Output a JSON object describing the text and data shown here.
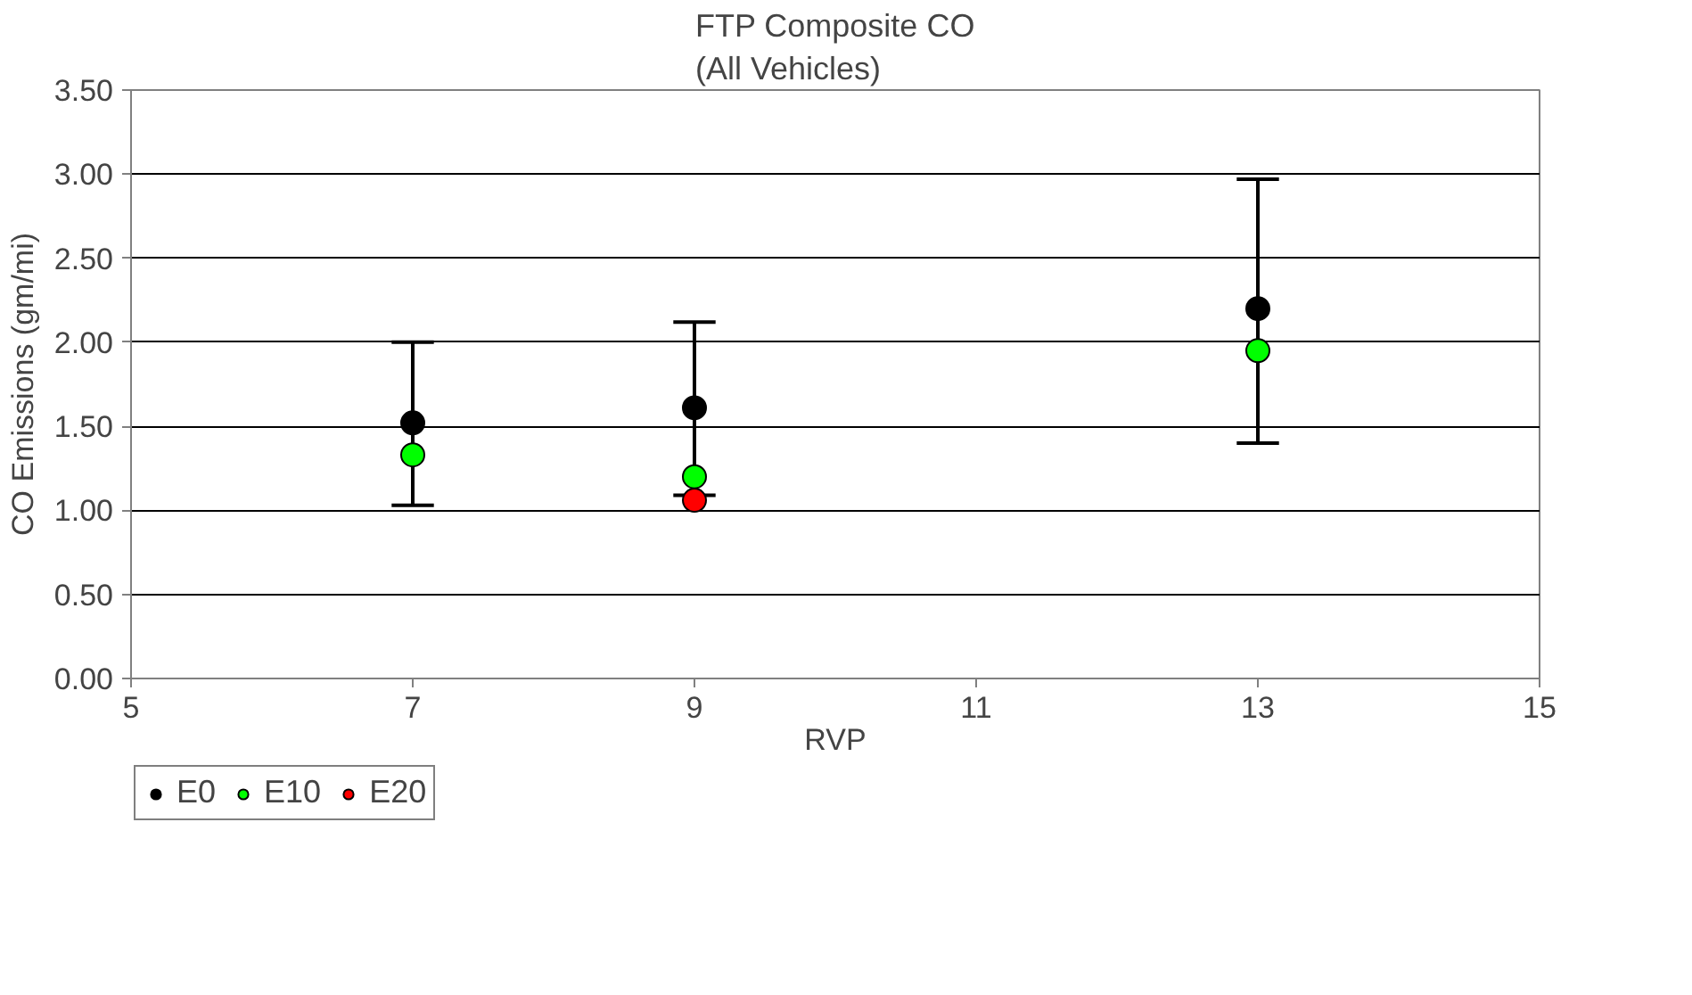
{
  "chart_data": {
    "type": "scatter",
    "title": "FTP Composite CO\n(All Vehicles)",
    "xlabel": "RVP",
    "ylabel": "CO Emissions (gm/mi)",
    "series": [
      {
        "name": "E0",
        "color": "#000000",
        "x": [
          7,
          9,
          13
        ],
        "values": [
          1.52,
          1.61,
          2.2
        ],
        "errors": [
          [
            1.03,
            2.0
          ],
          [
            1.09,
            2.12
          ],
          [
            1.4,
            2.97
          ]
        ]
      },
      {
        "name": "E10",
        "color": "#00ff00",
        "x": [
          7,
          9,
          13
        ],
        "values": [
          1.33,
          1.2,
          1.95
        ]
      },
      {
        "name": "E20",
        "color": "#ff0000",
        "x": [
          9
        ],
        "values": [
          1.06
        ]
      }
    ],
    "xlim": [
      5,
      15
    ],
    "xticks": [
      5,
      7,
      9,
      11,
      13,
      15
    ],
    "ylim": [
      0,
      3.5
    ],
    "yticks": [
      {
        "value": 0,
        "label": "0.00"
      },
      {
        "value": 0.5,
        "label": "0.50"
      },
      {
        "value": 1,
        "label": "1.00"
      },
      {
        "value": 1.5,
        "label": "1.50"
      },
      {
        "value": 2,
        "label": "2.00"
      },
      {
        "value": 2.5,
        "label": "2.50"
      },
      {
        "value": 3,
        "label": "3.00"
      },
      {
        "value": 3.5,
        "label": "3.50"
      }
    ],
    "grid": "y",
    "legend": "bottom left",
    "marker": "circle"
  }
}
